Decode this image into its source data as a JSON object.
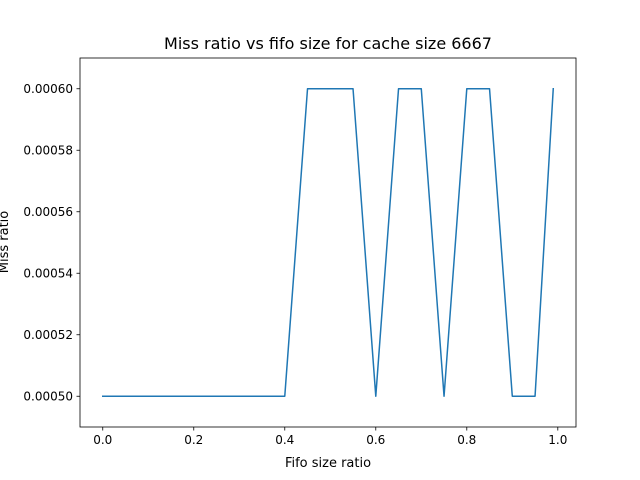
{
  "chart_data": {
    "type": "line",
    "title": "Miss ratio vs fifo size for cache size 6667",
    "xlabel": "Fifo size ratio",
    "ylabel": "Miss ratio",
    "xlim": [
      -0.05,
      1.04
    ],
    "ylim": [
      0.00049,
      0.00061
    ],
    "xticks": [
      0.0,
      0.2,
      0.4,
      0.6,
      0.8,
      1.0
    ],
    "xtick_labels": [
      "0.0",
      "0.2",
      "0.4",
      "0.6",
      "0.8",
      "1.0"
    ],
    "yticks": [
      0.0005,
      0.00052,
      0.00054,
      0.00056,
      0.00058,
      0.0006
    ],
    "ytick_labels": [
      "0.00050",
      "0.00052",
      "0.00054",
      "0.00056",
      "0.00058",
      "0.00060"
    ],
    "grid": false,
    "series": [
      {
        "color": "#1f77b4",
        "x": [
          0.0,
          0.05,
          0.1,
          0.15,
          0.2,
          0.25,
          0.3,
          0.35,
          0.4,
          0.45,
          0.5,
          0.55,
          0.6,
          0.65,
          0.7,
          0.75,
          0.8,
          0.85,
          0.9,
          0.95,
          0.99
        ],
        "y": [
          0.0005,
          0.0005,
          0.0005,
          0.0005,
          0.0005,
          0.0005,
          0.0005,
          0.0005,
          0.0005,
          0.0006,
          0.0006,
          0.0006,
          0.0005,
          0.0006,
          0.0006,
          0.0005,
          0.0006,
          0.0006,
          0.0005,
          0.0005,
          0.0006
        ]
      }
    ]
  }
}
